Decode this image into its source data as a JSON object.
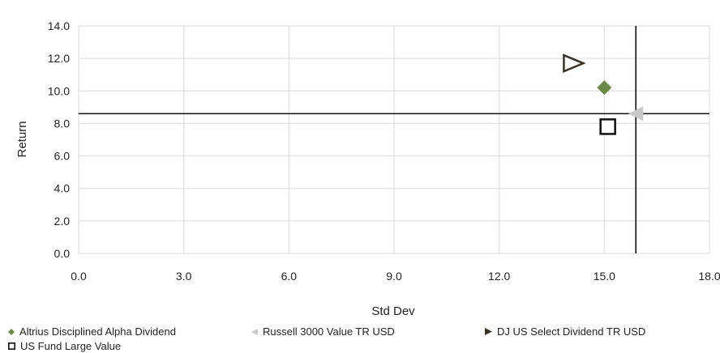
{
  "chart_data": {
    "type": "scatter",
    "xlabel": "Std Dev",
    "ylabel": "Return",
    "xlim": [
      0,
      18
    ],
    "ylim": [
      0,
      14
    ],
    "x_ticks": [
      "0.0",
      "3.0",
      "6.0",
      "9.0",
      "12.0",
      "15.0",
      "18.0"
    ],
    "y_ticks": [
      "0.0",
      "2.0",
      "4.0",
      "6.0",
      "8.0",
      "10.0",
      "12.0",
      "14.0"
    ],
    "grid": true,
    "legend_position": "bottom",
    "crosshair": {
      "x": 15.9,
      "y": 8.6
    },
    "series": [
      {
        "name": "Altrius Disciplined Alpha Dividend",
        "marker": "diamond",
        "color": "#6b8a47",
        "x": 15.0,
        "y": 10.2
      },
      {
        "name": "Russell 3000 Value TR USD",
        "marker": "triangle-left",
        "color": "#c8c8c8",
        "x": 15.9,
        "y": 8.6
      },
      {
        "name": "DJ US Select Dividend TR USD",
        "marker": "triangle-right",
        "color": "#3b3226",
        "x": 14.1,
        "y": 11.7
      },
      {
        "name": "US Fund Large Value",
        "marker": "square",
        "color": "#111111",
        "x": 15.1,
        "y": 7.8
      }
    ]
  }
}
